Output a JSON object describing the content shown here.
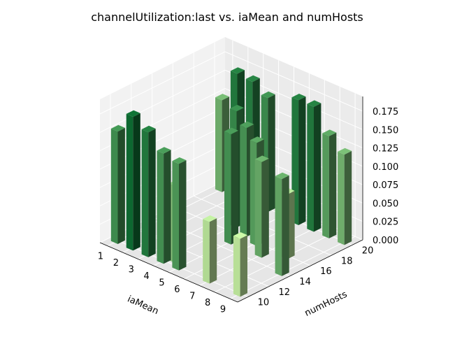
{
  "chart_data": {
    "type": "bar3d",
    "title": "channelUtilization:last vs. iaMean and numHosts",
    "xlabel": "iaMean",
    "ylabel": "numHosts",
    "zlabel": "",
    "x_ticks": [
      1,
      2,
      3,
      4,
      5,
      6,
      7,
      8,
      9
    ],
    "y_ticks": [
      10,
      12,
      14,
      16,
      18,
      20
    ],
    "z_ticks": [
      0.0,
      0.025,
      0.05,
      0.075,
      0.1,
      0.125,
      0.15,
      0.175
    ],
    "z_tick_labels": [
      "0.000",
      "0.025",
      "0.050",
      "0.075",
      "0.100",
      "0.125",
      "0.150",
      "0.175"
    ],
    "xlim": [
      0.5,
      9.5
    ],
    "ylim": [
      9,
      21
    ],
    "zlim": [
      0,
      0.195
    ],
    "colormap": "greens",
    "bars": [
      {
        "x": 1,
        "y": 10,
        "z": 0.153
      },
      {
        "x": 2,
        "y": 10,
        "z": 0.182
      },
      {
        "x": 3,
        "y": 10,
        "z": 0.17
      },
      {
        "x": 4,
        "y": 10,
        "z": 0.15
      },
      {
        "x": 4.4,
        "y": 10.6,
        "z": 0.105
      },
      {
        "x": 5,
        "y": 10,
        "z": 0.145
      },
      {
        "x": 7,
        "y": 10,
        "z": 0.084
      },
      {
        "x": 9,
        "y": 10,
        "z": 0.079
      },
      {
        "x": 1,
        "y": 20,
        "z": 0.125
      },
      {
        "x": 2,
        "y": 20,
        "z": 0.17
      },
      {
        "x": 3,
        "y": 20,
        "z": 0.168
      },
      {
        "x": 4,
        "y": 20,
        "z": 0.155
      },
      {
        "x": 4,
        "y": 17,
        "z": 0.158
      },
      {
        "x": 5,
        "y": 15,
        "z": 0.15
      },
      {
        "x": 5,
        "y": 16.5,
        "z": 0.148
      },
      {
        "x": 6,
        "y": 16,
        "z": 0.14
      },
      {
        "x": 7,
        "y": 15,
        "z": 0.13
      },
      {
        "x": 8,
        "y": 20,
        "z": 0.139
      },
      {
        "x": 8,
        "y": 16,
        "z": 0.088
      },
      {
        "x": 9,
        "y": 20,
        "z": 0.123
      },
      {
        "x": 6,
        "y": 20,
        "z": 0.17
      },
      {
        "x": 7,
        "y": 20,
        "z": 0.17
      },
      {
        "x": 9,
        "y": 14,
        "z": 0.132
      }
    ]
  }
}
